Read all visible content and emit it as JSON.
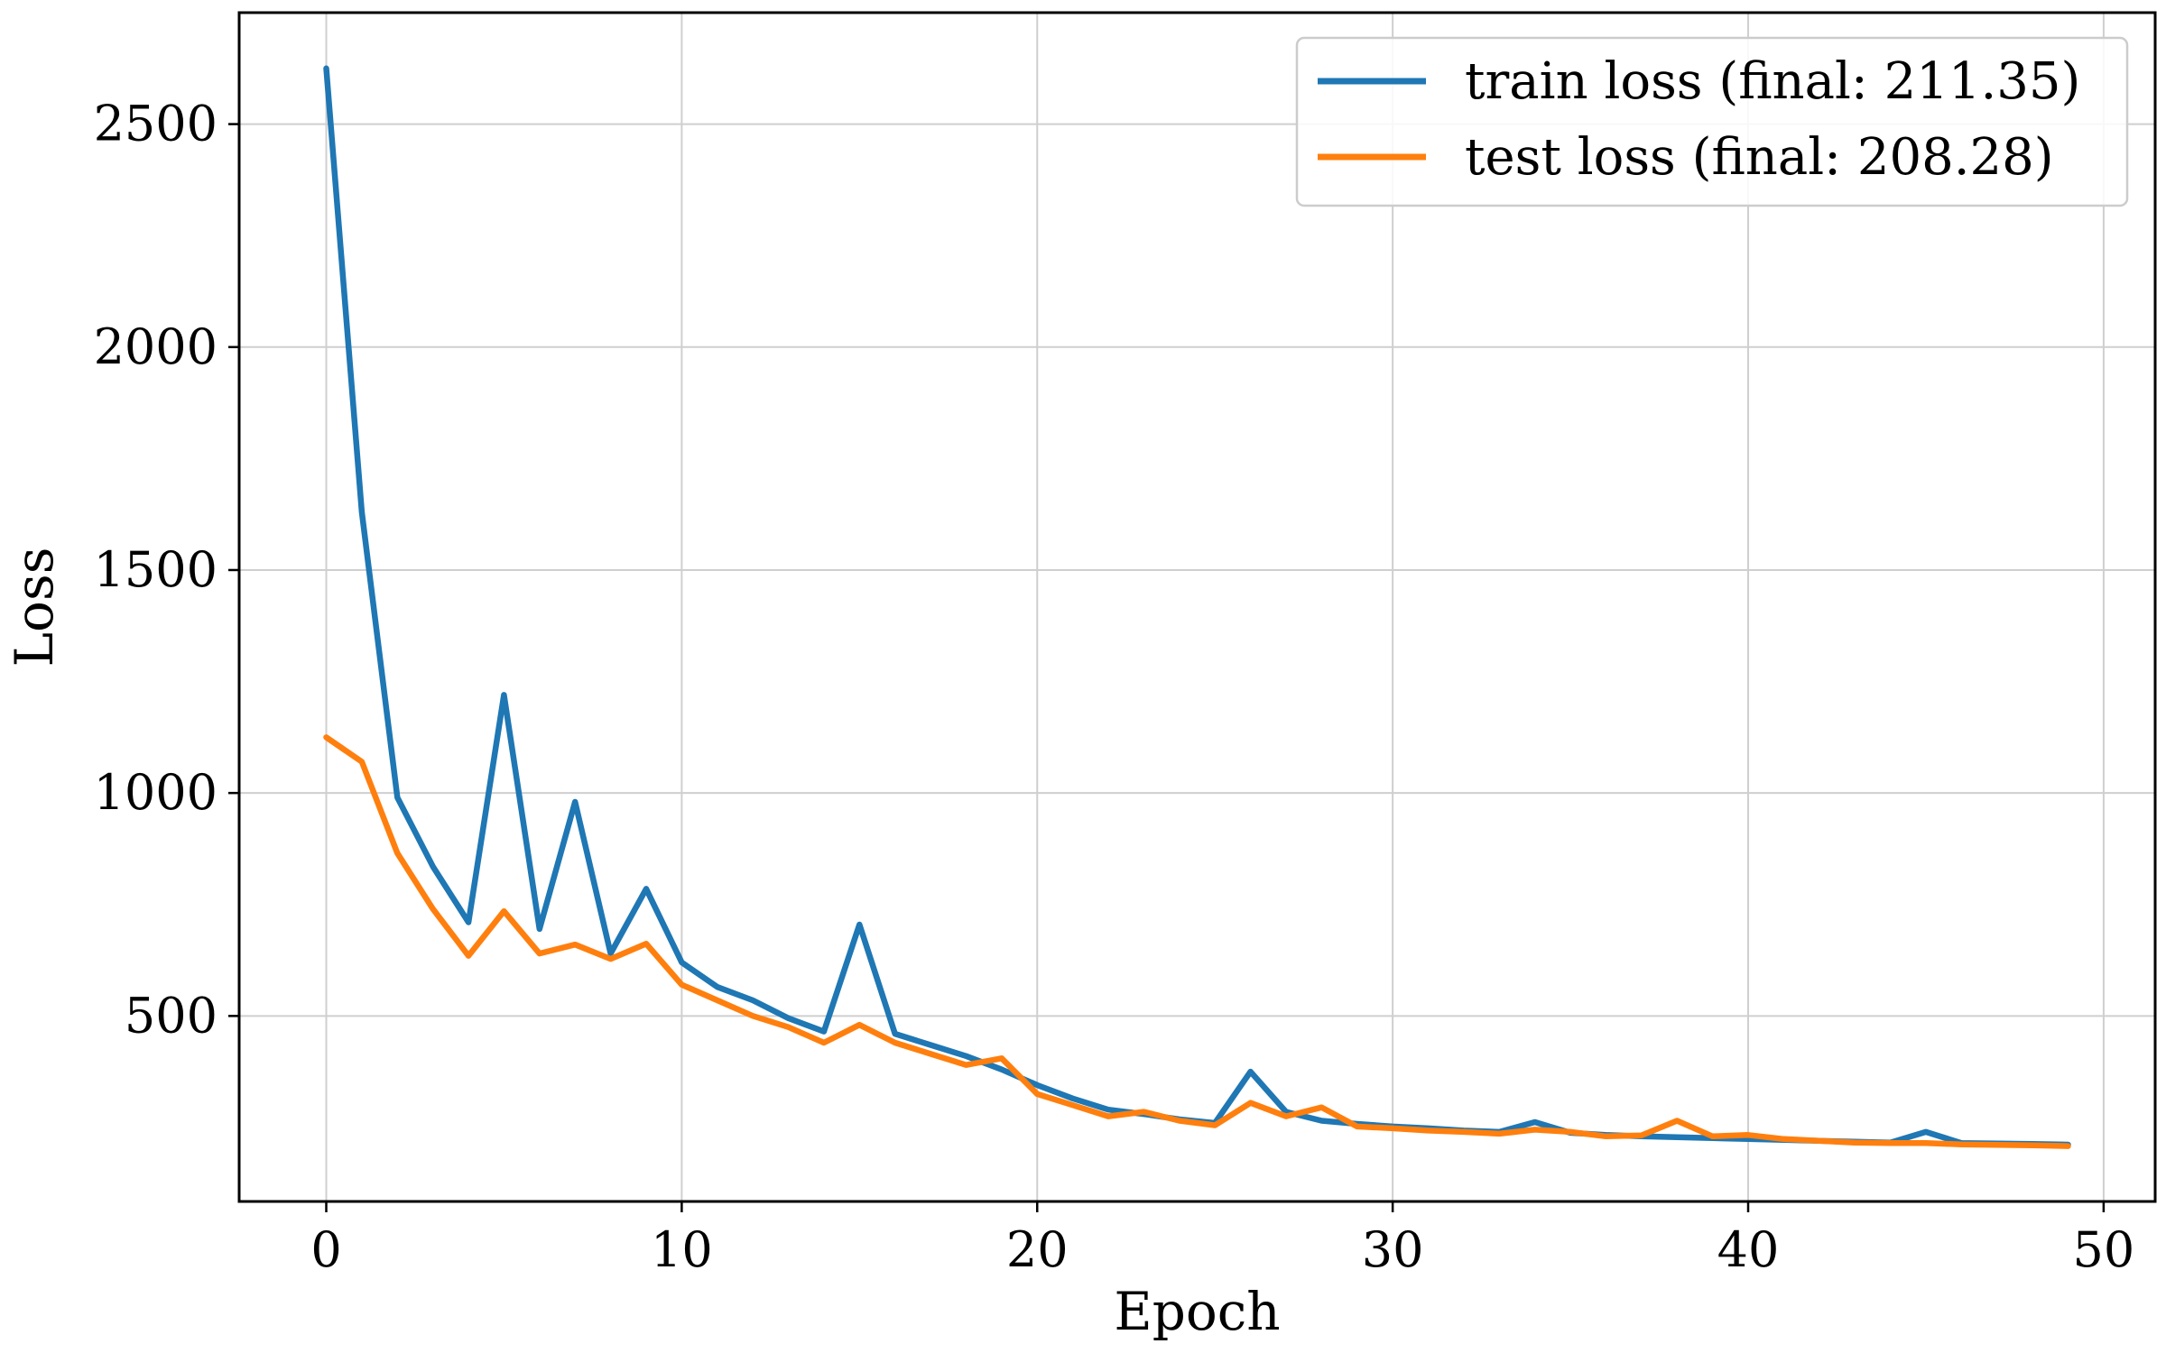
{
  "chart_data": {
    "type": "line",
    "title": "",
    "xlabel": "Epoch",
    "ylabel": "Loss",
    "xlim": [
      -2.45,
      51.45
    ],
    "ylim": [
      84,
      2750
    ],
    "xticks": [
      0,
      10,
      20,
      30,
      40,
      50
    ],
    "yticks": [
      500,
      1000,
      1500,
      2000,
      2500
    ],
    "grid": true,
    "legend_position": "top-right",
    "x": [
      0,
      1,
      2,
      3,
      4,
      5,
      6,
      7,
      8,
      9,
      10,
      11,
      12,
      13,
      14,
      15,
      16,
      17,
      18,
      19,
      20,
      21,
      22,
      23,
      24,
      25,
      26,
      27,
      28,
      29,
      30,
      31,
      32,
      33,
      34,
      35,
      36,
      37,
      38,
      39,
      40,
      41,
      42,
      43,
      44,
      45,
      46,
      47,
      48,
      49
    ],
    "series": [
      {
        "name": "train loss (final: 211.35)",
        "color": "#1f77b4",
        "values": [
          2625,
          1630,
          990,
          835,
          710,
          1220,
          695,
          980,
          640,
          785,
          620,
          565,
          535,
          495,
          465,
          705,
          460,
          435,
          410,
          380,
          345,
          315,
          290,
          280,
          268,
          260,
          375,
          285,
          265,
          258,
          252,
          248,
          243,
          240,
          262,
          238,
          233,
          230,
          228,
          226,
          224,
          222,
          220,
          218,
          216,
          240,
          215,
          214,
          213,
          211.35
        ]
      },
      {
        "name": "test loss (final: 208.28)",
        "color": "#ff7f0e",
        "values": [
          1125,
          1070,
          865,
          740,
          635,
          735,
          640,
          660,
          628,
          662,
          570,
          535,
          500,
          475,
          440,
          480,
          440,
          415,
          390,
          405,
          325,
          300,
          275,
          285,
          265,
          255,
          305,
          275,
          295,
          252,
          248,
          243,
          240,
          236,
          245,
          240,
          230,
          232,
          265,
          230,
          233,
          224,
          220,
          216,
          215,
          215,
          212,
          211,
          210,
          208.28
        ]
      }
    ]
  }
}
